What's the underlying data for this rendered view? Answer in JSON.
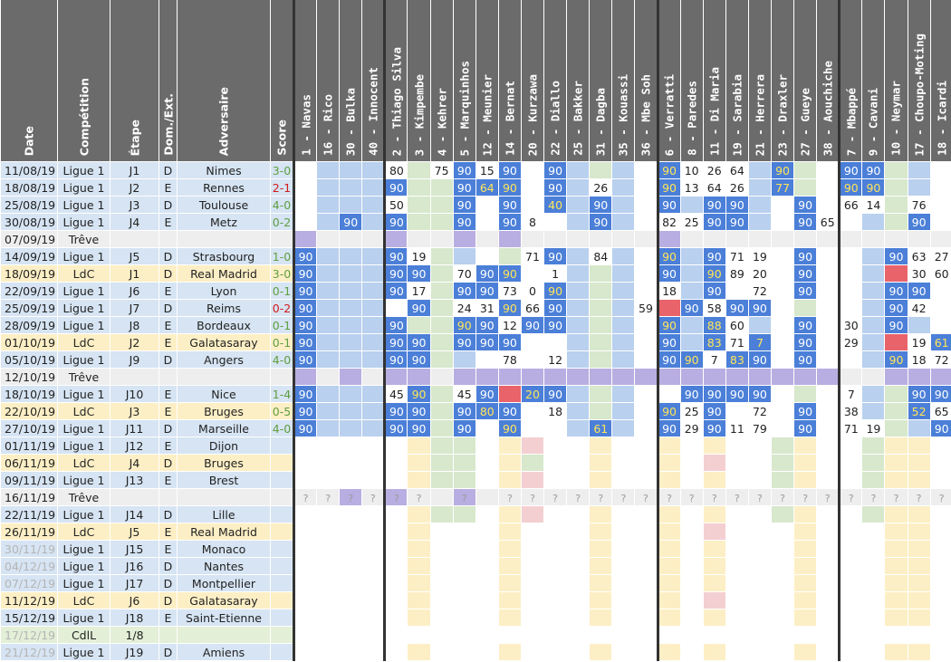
{
  "headers": {
    "info": [
      "Date",
      "Compétition",
      "Étape",
      "Dom./Ext.",
      "Adversaire",
      "Score"
    ],
    "players": [
      "1 - Navas",
      "16 - Rico",
      "30 - Bulka",
      "40 - Innocent",
      "2 - Thiago Silva",
      "3 - Kimpembe",
      "4 - Kehrer",
      "5 - Marquinhos",
      "12 - Meunier",
      "14 - Bernat",
      "20 - Kurzawa",
      "22 - Diallo",
      "25 - Bakker",
      "31 - Dagba",
      "35 - Kouassi",
      "36 - Mbe Soh",
      "6 - Verratti",
      "8 - Paredes",
      "11 - Di Maria",
      "19 - Sarabia",
      "21 - Herrera",
      "23 - Draxler",
      "27 - Gueye",
      "38 - Aouchiche",
      "7 - Mbappé",
      "9 - Cavani",
      "10 - Neymar",
      "17 - Choupo-Moting",
      "18 - Icardi"
    ]
  },
  "colors": {
    "full": "#4b7fd8",
    "bench": "#b9d0ef",
    "unused": "#d7e8cc",
    "absent": "#b9aee1",
    "future": "#fdefc5",
    "red": "#e9636b",
    "header": "#6b6b6b"
  },
  "rows": [
    {
      "date": "11/08/19",
      "comp": "Ligue 1",
      "stage": "J1",
      "venue": "D",
      "opp": "Nimes",
      "score": "3-0",
      "res": "w",
      "type": "l1"
    },
    {
      "date": "18/08/19",
      "comp": "Ligue 1",
      "stage": "J2",
      "venue": "E",
      "opp": "Rennes",
      "score": "2-1",
      "res": "l",
      "type": "l1"
    },
    {
      "date": "25/08/19",
      "comp": "Ligue 1",
      "stage": "J3",
      "venue": "D",
      "opp": "Toulouse",
      "score": "4-0",
      "res": "w",
      "type": "l1"
    },
    {
      "date": "30/08/19",
      "comp": "Ligue 1",
      "stage": "J4",
      "venue": "E",
      "opp": "Metz",
      "score": "0-2",
      "res": "w",
      "type": "l1"
    },
    {
      "date": "07/09/19",
      "comp": "Trêve",
      "stage": "",
      "venue": "",
      "opp": "",
      "score": "",
      "res": "",
      "type": "tr"
    },
    {
      "date": "14/09/19",
      "comp": "Ligue 1",
      "stage": "J5",
      "venue": "D",
      "opp": "Strasbourg",
      "score": "1-0",
      "res": "w",
      "type": "l1"
    },
    {
      "date": "18/09/19",
      "comp": "LdC",
      "stage": "J1",
      "venue": "D",
      "opp": "Real Madrid",
      "score": "3-0",
      "res": "w",
      "type": "ldc"
    },
    {
      "date": "22/09/19",
      "comp": "Ligue 1",
      "stage": "J6",
      "venue": "E",
      "opp": "Lyon",
      "score": "0-1",
      "res": "w",
      "type": "l1"
    },
    {
      "date": "25/09/19",
      "comp": "Ligue 1",
      "stage": "J7",
      "venue": "D",
      "opp": "Reims",
      "score": "0-2",
      "res": "l",
      "type": "l1"
    },
    {
      "date": "28/09/19",
      "comp": "Ligue 1",
      "stage": "J8",
      "venue": "E",
      "opp": "Bordeaux",
      "score": "0-1",
      "res": "w",
      "type": "l1"
    },
    {
      "date": "01/10/19",
      "comp": "LdC",
      "stage": "J2",
      "venue": "E",
      "opp": "Galatasaray",
      "score": "0-1",
      "res": "w",
      "type": "ldc"
    },
    {
      "date": "05/10/19",
      "comp": "Ligue 1",
      "stage": "J9",
      "venue": "D",
      "opp": "Angers",
      "score": "4-0",
      "res": "w",
      "type": "l1"
    },
    {
      "date": "12/10/19",
      "comp": "Trêve",
      "stage": "",
      "venue": "",
      "opp": "",
      "score": "",
      "res": "",
      "type": "tr"
    },
    {
      "date": "18/10/19",
      "comp": "Ligue 1",
      "stage": "J10",
      "venue": "E",
      "opp": "Nice",
      "score": "1-4",
      "res": "w",
      "type": "l1"
    },
    {
      "date": "22/10/19",
      "comp": "LdC",
      "stage": "J3",
      "venue": "E",
      "opp": "Bruges",
      "score": "0-5",
      "res": "w",
      "type": "ldc"
    },
    {
      "date": "27/10/19",
      "comp": "Ligue 1",
      "stage": "J11",
      "venue": "D",
      "opp": "Marseille",
      "score": "4-0",
      "res": "w",
      "type": "l1"
    },
    {
      "date": "01/11/19",
      "comp": "Ligue 1",
      "stage": "J12",
      "venue": "E",
      "opp": "Dijon",
      "score": "",
      "res": "",
      "type": "l1"
    },
    {
      "date": "06/11/19",
      "comp": "LdC",
      "stage": "J4",
      "venue": "D",
      "opp": "Bruges",
      "score": "",
      "res": "",
      "type": "ldc"
    },
    {
      "date": "09/11/19",
      "comp": "Ligue 1",
      "stage": "J13",
      "venue": "E",
      "opp": "Brest",
      "score": "",
      "res": "",
      "type": "l1"
    },
    {
      "date": "16/11/19",
      "comp": "Trêve",
      "stage": "",
      "venue": "",
      "opp": "",
      "score": "",
      "res": "",
      "type": "tr"
    },
    {
      "date": "22/11/19",
      "comp": "Ligue 1",
      "stage": "J14",
      "venue": "D",
      "opp": "Lille",
      "score": "",
      "res": "",
      "type": "l1"
    },
    {
      "date": "26/11/19",
      "comp": "LdC",
      "stage": "J5",
      "venue": "E",
      "opp": "Real Madrid",
      "score": "",
      "res": "",
      "type": "ldc"
    },
    {
      "date": "30/11/19",
      "comp": "Ligue 1",
      "stage": "J15",
      "venue": "E",
      "opp": "Monaco",
      "score": "",
      "res": "",
      "type": "l1",
      "faded": true
    },
    {
      "date": "04/12/19",
      "comp": "Ligue 1",
      "stage": "J16",
      "venue": "D",
      "opp": "Nantes",
      "score": "",
      "res": "",
      "type": "l1",
      "faded": true
    },
    {
      "date": "07/12/19",
      "comp": "Ligue 1",
      "stage": "J17",
      "venue": "D",
      "opp": "Montpellier",
      "score": "",
      "res": "",
      "type": "l1",
      "faded": true
    },
    {
      "date": "11/12/19",
      "comp": "LdC",
      "stage": "J6",
      "venue": "D",
      "opp": "Galatasaray",
      "score": "",
      "res": "",
      "type": "ldc"
    },
    {
      "date": "15/12/19",
      "comp": "Ligue 1",
      "stage": "J18",
      "venue": "E",
      "opp": "Saint-Etienne",
      "score": "",
      "res": "",
      "type": "l1"
    },
    {
      "date": "17/12/19",
      "comp": "CdlL",
      "stage": "1/8",
      "venue": "",
      "opp": "",
      "score": "",
      "res": "",
      "type": "cdl",
      "faded": true
    },
    {
      "date": "21/12/19",
      "comp": "Ligue 1",
      "stage": "J19",
      "venue": "D",
      "opp": "Amiens",
      "score": "",
      "res": "",
      "type": "l1",
      "faded": true
    }
  ],
  "grid": [
    [
      "",
      "",
      "",
      "",
      "80",
      "g",
      "75",
      "90",
      "15",
      "90",
      "",
      "90",
      "",
      "",
      "",
      "",
      "90y",
      "10",
      "26",
      "64",
      "",
      "90y",
      "",
      "",
      "90",
      "90",
      "",
      "",
      ""
    ],
    [
      "",
      "",
      "",
      "",
      "90",
      "g",
      "",
      "90",
      "64y",
      "90y",
      "",
      "90",
      "",
      "26",
      "",
      "",
      "90y",
      "13",
      "64",
      "26",
      "",
      "77y",
      "",
      "",
      "90y",
      "90y",
      "",
      "",
      ""
    ],
    [
      "",
      "",
      "",
      "",
      "50",
      "",
      "",
      "90",
      "",
      "90",
      "",
      "40y",
      "",
      "90",
      "",
      "",
      "90",
      "",
      "90",
      "90",
      "",
      "",
      "90",
      "",
      "66",
      "14",
      "",
      "76",
      ""
    ],
    [
      "",
      "",
      "90",
      "",
      "90",
      "",
      "",
      "90",
      "",
      "90",
      "8",
      "",
      "",
      "90",
      "",
      "",
      "82",
      "25",
      "90",
      "90",
      "",
      "",
      "90",
      "65",
      "",
      "",
      "",
      "90",
      ""
    ],
    [
      "A",
      "",
      "",
      "",
      "A",
      "",
      "",
      "A",
      "",
      "A",
      "",
      "",
      "",
      "",
      "",
      "",
      "A",
      "",
      "",
      "",
      "",
      "",
      "",
      "",
      "",
      "",
      "",
      "",
      ""
    ],
    [
      "90",
      "",
      "",
      "",
      "90",
      "19",
      "",
      "",
      "",
      "",
      "71",
      "90",
      "",
      "84",
      "",
      "",
      "90y",
      "",
      "90",
      "71",
      "19",
      "",
      "90",
      "",
      "",
      "",
      "90",
      "63",
      "27"
    ],
    [
      "90",
      "",
      "",
      "",
      "90",
      "90",
      "",
      "70",
      "90",
      "90y",
      "",
      "1",
      "",
      "",
      "",
      "",
      "90",
      "",
      "90y",
      "89",
      "20",
      "",
      "90",
      "",
      "",
      "",
      "R",
      "30",
      "60"
    ],
    [
      "90",
      "",
      "",
      "",
      "90",
      "17",
      "",
      "90",
      "90",
      "73",
      "0",
      "90y",
      "",
      "",
      "",
      "",
      "18",
      "",
      "90",
      "",
      "72",
      "",
      "90",
      "",
      "",
      "",
      "90",
      "90",
      ""
    ],
    [
      "90",
      "",
      "",
      "",
      "",
      "90",
      "",
      "24",
      "31",
      "90y",
      "66",
      "90",
      "",
      "",
      "",
      "59",
      "R",
      "90",
      "58",
      "90",
      "90",
      "",
      "",
      "",
      "",
      "",
      "90",
      "42",
      ""
    ],
    [
      "90",
      "",
      "",
      "",
      "90",
      "",
      "",
      "90y",
      "90",
      "12",
      "90",
      "90",
      "",
      "",
      "",
      "",
      "90y",
      "",
      "88y",
      "60",
      "",
      "",
      "90",
      "",
      "30",
      "",
      "90",
      "",
      ""
    ],
    [
      "90",
      "",
      "",
      "",
      "90",
      "90",
      "",
      "90",
      "90",
      "90",
      "",
      "",
      "",
      "",
      "",
      "",
      "90",
      "",
      "83y",
      "71",
      "7y",
      "",
      "90",
      "",
      "29",
      "",
      "R",
      "19",
      "61y"
    ],
    [
      "90",
      "",
      "",
      "",
      "90",
      "90",
      "",
      "",
      "",
      "78",
      "",
      "12",
      "",
      "",
      "",
      "",
      "90",
      "90y",
      "7",
      "83y",
      "90",
      "",
      "90",
      "",
      "",
      "",
      "90y",
      "18",
      "72"
    ],
    [
      "A",
      "",
      "A",
      "",
      "A",
      "A",
      "",
      "A",
      "A",
      "A",
      "A",
      "A",
      "A",
      "A",
      "A",
      "A",
      "A",
      "A",
      "A",
      "A",
      "A",
      "A",
      "A",
      "A",
      "",
      "",
      "A",
      "A",
      "A"
    ],
    [
      "90",
      "",
      "",
      "",
      "45",
      "90y",
      "",
      "45",
      "90",
      "R",
      "20y",
      "90",
      "",
      "",
      "",
      "",
      "",
      "90",
      "90",
      "90",
      "90",
      "",
      "",
      "",
      "7",
      "",
      "",
      "90",
      "90"
    ],
    [
      "90",
      "",
      "",
      "",
      "90",
      "90",
      "",
      "90",
      "80y",
      "90",
      "",
      "18",
      "",
      "",
      "",
      "",
      "90y",
      "25",
      "90",
      "",
      "72",
      "",
      "90",
      "",
      "38",
      "",
      "",
      "52y",
      "65"
    ],
    [
      "90",
      "",
      "",
      "",
      "90",
      "90",
      "",
      "90",
      "",
      "90y",
      "",
      "",
      "",
      "61y",
      "",
      "",
      "90",
      "29",
      "90",
      "11",
      "79",
      "",
      "90",
      "",
      "71",
      "19",
      "",
      "",
      "90"
    ]
  ]
}
